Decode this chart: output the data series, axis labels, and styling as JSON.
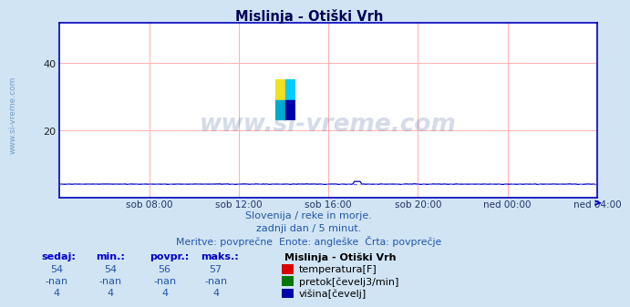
{
  "title": "Mislinja - Otiški Vrh",
  "bg_color": "#d0e4f4",
  "plot_bg_color": "#ffffff",
  "grid_color": "#ffb0b0",
  "border_color": "#0000bb",
  "x_labels": [
    "sob 08:00",
    "sob 12:00",
    "sob 16:00",
    "sob 20:00",
    "ned 00:00",
    "ned 04:00"
  ],
  "x_ticks_pos": [
    48,
    96,
    144,
    192,
    240,
    288
  ],
  "x_total": 288,
  "ylim": [
    0,
    52
  ],
  "y_ticks": [
    20,
    40
  ],
  "temp_color": "#dd0000",
  "temp_avg_color": "#ff6666",
  "height_color": "#0000aa",
  "height_avg_color": "#6666ff",
  "watermark_text": "www.si-vreme.com",
  "watermark_color": "#1a3a8a",
  "watermark_alpha": 0.18,
  "subtitle1": "Slovenija / reke in morje.",
  "subtitle2": "zadnji dan / 5 minut.",
  "subtitle3": "Meritve: povprečne  Enote: angleške  Črta: povprečje",
  "subtitle_color": "#2255aa",
  "table_headers": [
    "sedaj:",
    "min.:",
    "povpr.:",
    "maks.:"
  ],
  "table_color": "#0000cc",
  "legend_title": "Mislinja - Otiški Vrh",
  "legend_items": [
    {
      "label": "temperatura[F]",
      "color": "#dd0000"
    },
    {
      "label": "pretok[čevelj3/min]",
      "color": "#007700"
    },
    {
      "label": "višina[čevelj]",
      "color": "#0000aa"
    }
  ],
  "table_data": [
    {
      "sedaj": "54",
      "min": "54",
      "povpr": "56",
      "maks": "57"
    },
    {
      "sedaj": "-nan",
      "min": "-nan",
      "povpr": "-nan",
      "maks": "-nan"
    },
    {
      "sedaj": "4",
      "min": "4",
      "povpr": "4",
      "maks": "4"
    }
  ],
  "temp_avg_val": 56.0,
  "height_val": 4.0,
  "ylabel_text": "www.si-vreme.com",
  "ylabel_color": "#4477aa",
  "logo_colors": [
    "#f0e020",
    "#00ccff",
    "#00aacc",
    "#0000aa"
  ]
}
